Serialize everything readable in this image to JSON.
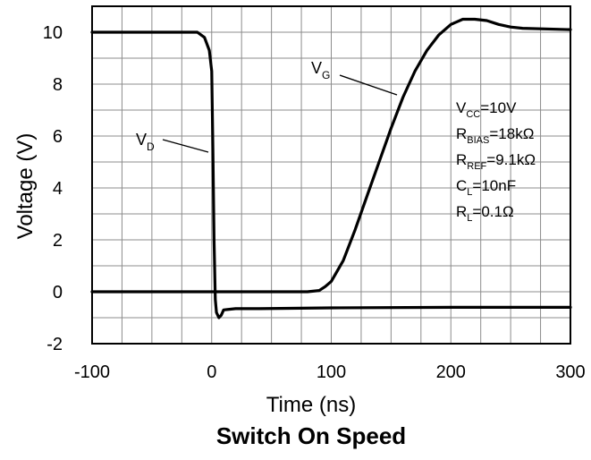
{
  "chart_data": {
    "type": "line",
    "title": "Switch On Speed",
    "xlabel": "Time (ns)",
    "ylabel": "Voltage (V)",
    "xlim": [
      -100,
      300
    ],
    "ylim": [
      -2,
      11
    ],
    "xticks": [
      -100,
      0,
      100,
      200,
      300
    ],
    "yticks": [
      -2,
      0,
      2,
      4,
      6,
      8,
      10
    ],
    "xtick_labels": [
      "-100",
      "0",
      "100",
      "200",
      "300"
    ],
    "ytick_labels": [
      "-2",
      "0",
      "2",
      "4",
      "6",
      "8",
      "10"
    ],
    "grid": true,
    "series": [
      {
        "name": "VD",
        "label": {
          "main": "V",
          "sub": "D"
        },
        "x": [
          -100,
          -12,
          -6,
          -2,
          0,
          1,
          2,
          3,
          4,
          6,
          8,
          10,
          20,
          40,
          100,
          200,
          300
        ],
        "y": [
          10,
          10,
          9.8,
          9.3,
          8.5,
          5.5,
          2.0,
          -0.3,
          -0.8,
          -1.0,
          -0.9,
          -0.7,
          -0.65,
          -0.65,
          -0.62,
          -0.6,
          -0.6
        ]
      },
      {
        "name": "VG",
        "label": {
          "main": "V",
          "sub": "G"
        },
        "x": [
          -100,
          0,
          80,
          90,
          95,
          100,
          110,
          120,
          130,
          140,
          150,
          160,
          170,
          180,
          190,
          200,
          210,
          220,
          230,
          240,
          250,
          260,
          300
        ],
        "y": [
          0,
          0,
          0,
          0.05,
          0.2,
          0.4,
          1.2,
          2.4,
          3.7,
          5.0,
          6.3,
          7.5,
          8.5,
          9.3,
          9.9,
          10.3,
          10.5,
          10.5,
          10.45,
          10.3,
          10.2,
          10.15,
          10.1
        ]
      }
    ],
    "annotations": [
      {
        "main": "V",
        "sub": "CC",
        "rest": "=10V"
      },
      {
        "main": "R",
        "sub": "BIAS",
        "rest": "=18kΩ"
      },
      {
        "main": "R",
        "sub": "REF",
        "rest": "=9.1kΩ"
      },
      {
        "main": "C",
        "sub": "L",
        "rest": "=10nF"
      },
      {
        "main": "R",
        "sub": "L",
        "rest": "=0.1Ω"
      }
    ]
  }
}
